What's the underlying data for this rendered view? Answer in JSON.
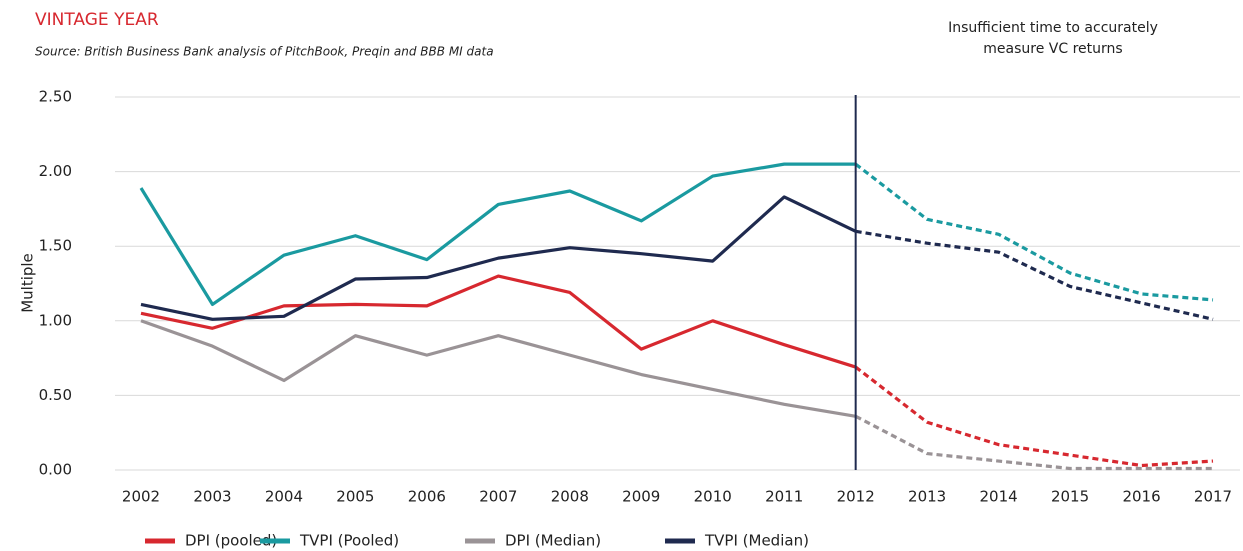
{
  "chart_data": {
    "type": "line",
    "title": "VINTAGE YEAR",
    "subtitle": "Source: British Business Bank analysis of PitchBook, Preqin and BBB MI data",
    "annotation": [
      "Insufficient time to accurately",
      "measure VC returns"
    ],
    "y_label": "Multiple",
    "categories": [
      "2002",
      "2003",
      "2004",
      "2005",
      "2006",
      "2007",
      "2008",
      "2009",
      "2010",
      "2011",
      "2012",
      "2013",
      "2014",
      "2015",
      "2016",
      "2017"
    ],
    "dashed_from": "2012",
    "series": [
      {
        "name": "DPI (pooled)",
        "color": "#d7282f",
        "values": [
          1.05,
          0.95,
          1.1,
          1.11,
          1.1,
          1.3,
          1.19,
          0.81,
          1.0,
          0.84,
          0.69,
          0.32,
          0.17,
          0.1,
          0.03,
          0.06
        ]
      },
      {
        "name": "TVPI (Pooled)",
        "color": "#1a9aa0",
        "values": [
          1.89,
          1.11,
          1.44,
          1.57,
          1.41,
          1.78,
          1.87,
          1.67,
          1.97,
          2.05,
          2.05,
          1.68,
          1.58,
          1.32,
          1.18,
          1.14
        ]
      },
      {
        "name": "DPI (Median)",
        "color": "#9a9396",
        "values": [
          1.0,
          0.83,
          0.6,
          0.9,
          0.77,
          0.9,
          0.77,
          0.64,
          0.54,
          0.44,
          0.36,
          0.11,
          0.06,
          0.01,
          0.01,
          0.01
        ]
      },
      {
        "name": "TVPI (Median)",
        "color": "#1f2a4f",
        "values": [
          1.11,
          1.01,
          1.03,
          1.28,
          1.29,
          1.42,
          1.49,
          1.45,
          1.4,
          1.83,
          1.6,
          1.52,
          1.46,
          1.23,
          1.12,
          1.01
        ]
      }
    ],
    "ylim": [
      0,
      2.5
    ],
    "yticks": [
      {
        "value": 0,
        "label": "0.00"
      },
      {
        "value": 0.5,
        "label": "0.50"
      },
      {
        "value": 1,
        "label": "1.00"
      },
      {
        "value": 1.5,
        "label": "1.50"
      },
      {
        "value": 2,
        "label": "2.00"
      },
      {
        "value": 2.5,
        "label": "2.50"
      }
    ],
    "grid": true
  }
}
